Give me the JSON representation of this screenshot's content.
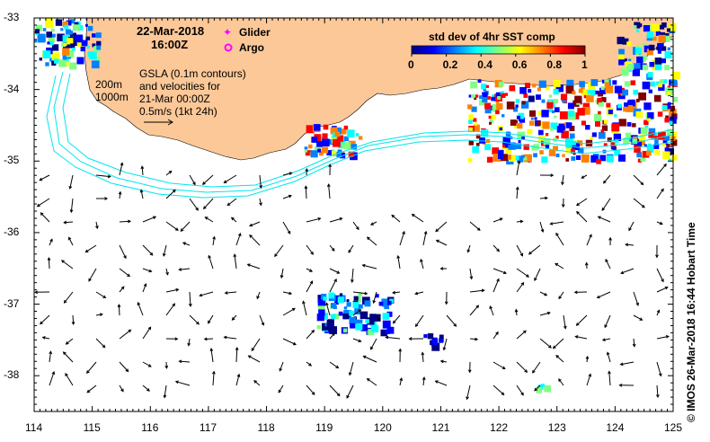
{
  "header": {
    "date": "22-Mar-2018",
    "time": "16:00Z"
  },
  "legend": {
    "glider_label": "Glider",
    "argo_label": "Argo",
    "glider_color": "#ff00ff",
    "argo_color": "#ff00ff"
  },
  "annotation": {
    "depth_200": "200m",
    "depth_1000": "1000m",
    "line1": "GSLA (0.1m contours)",
    "line2": "and velocities for",
    "line3": "21-Mar 00:00Z",
    "line4": "0.5m/s (1kt 24h)"
  },
  "colorbar": {
    "title": "std dev of 4hr SST comp",
    "ticks": [
      "0",
      "0.2",
      "0.4",
      "0.6",
      "0.8",
      "1"
    ],
    "colors": [
      "#000080",
      "#0000ff",
      "#0080ff",
      "#00ffff",
      "#80ff80",
      "#ffff00",
      "#ff8000",
      "#ff0000",
      "#800000"
    ]
  },
  "axes": {
    "lon_ticks": [
      "114",
      "115",
      "116",
      "117",
      "118",
      "119",
      "120",
      "121",
      "122",
      "123",
      "124",
      "125"
    ],
    "lat_ticks": [
      "-33",
      "-34",
      "-35",
      "-36",
      "-37",
      "-38"
    ],
    "lon_range": [
      114,
      125
    ],
    "lat_range": [
      -38.5,
      -33
    ]
  },
  "colors": {
    "land": "#fcc898",
    "contour": "#00e5ee",
    "arrow": "#000000"
  },
  "credit": "©  IMOS 26-Mar-2018 16:44 Hobart Time"
}
